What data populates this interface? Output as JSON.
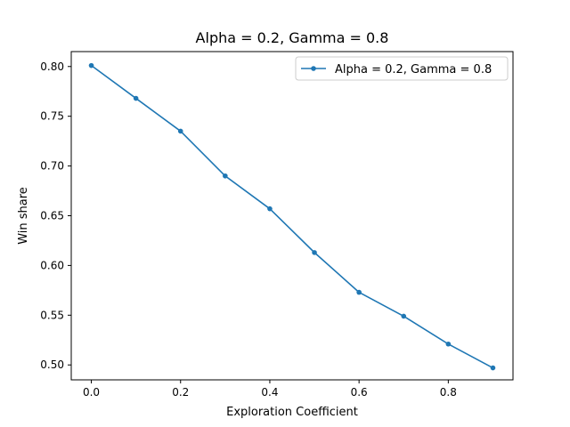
{
  "chart_data": {
    "type": "line",
    "title": "Alpha = 0.2, Gamma = 0.8",
    "xlabel": "Exploration Coefficient",
    "ylabel": "Win share",
    "xlim": [
      -0.045,
      0.945
    ],
    "ylim": [
      0.485,
      0.815
    ],
    "x_ticks": [
      0.0,
      0.2,
      0.4,
      0.6,
      0.8
    ],
    "x_tick_labels": [
      "0.0",
      "0.2",
      "0.4",
      "0.6",
      "0.8"
    ],
    "y_ticks": [
      0.5,
      0.55,
      0.6,
      0.65,
      0.7,
      0.75,
      0.8
    ],
    "y_tick_labels": [
      "0.50",
      "0.55",
      "0.60",
      "0.65",
      "0.70",
      "0.75",
      "0.80"
    ],
    "grid": false,
    "legend_position": "top-right",
    "series": [
      {
        "name": "Alpha = 0.2, Gamma = 0.8",
        "color": "#1f77b4",
        "marker": "dot",
        "x": [
          0.0,
          0.1,
          0.2,
          0.3,
          0.4,
          0.5,
          0.6,
          0.7,
          0.8,
          0.9
        ],
        "y": [
          0.801,
          0.768,
          0.735,
          0.69,
          0.657,
          0.613,
          0.573,
          0.549,
          0.521,
          0.497
        ]
      }
    ]
  }
}
